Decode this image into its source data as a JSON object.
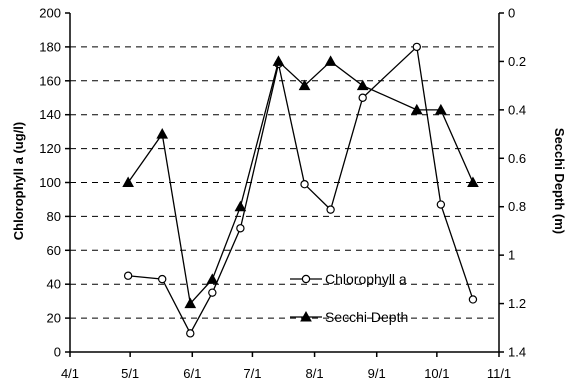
{
  "chart_data": {
    "type": "line",
    "x_tick_labels": [
      "4/1",
      "5/1",
      "6/1",
      "7/1",
      "8/1",
      "9/1",
      "10/1",
      "11/1"
    ],
    "xlim": [
      "4/1",
      "11/1"
    ],
    "ylabel": "Chlorophyll a (ug/l)",
    "ylim": [
      0,
      200
    ],
    "y_ticks": [
      0,
      20,
      40,
      60,
      80,
      100,
      120,
      140,
      160,
      180,
      200
    ],
    "y2label": "Secchi Depth (m)",
    "y2lim": [
      0,
      1.4
    ],
    "y2_inverted": true,
    "y2_ticks": [
      0,
      0.2,
      0.4,
      0.6,
      0.8,
      1,
      1.2,
      1.4
    ],
    "y2_tick_labels": [
      "0",
      "0.2",
      "0.4",
      "0.6",
      "0.8",
      "1",
      "1.2",
      "1.4"
    ],
    "grid": "horizontal dashed",
    "legend_position": "bottom-right",
    "series": [
      {
        "name": "Chlorophyll a",
        "axis": "left",
        "marker": "open-circle",
        "color": "#000000",
        "points": [
          {
            "x": "4/30",
            "y": 45
          },
          {
            "x": "5/17",
            "y": 43
          },
          {
            "x": "5/31",
            "y": 11
          },
          {
            "x": "6/11",
            "y": 35
          },
          {
            "x": "6/25",
            "y": 73
          },
          {
            "x": "7/14",
            "y": 170
          },
          {
            "x": "7/27",
            "y": 99
          },
          {
            "x": "8/9",
            "y": 84
          },
          {
            "x": "8/25",
            "y": 150
          },
          {
            "x": "9/21",
            "y": 180
          },
          {
            "x": "10/3",
            "y": 87
          },
          {
            "x": "10/19",
            "y": 31
          }
        ]
      },
      {
        "name": "Secchi Depth",
        "axis": "right",
        "marker": "filled-triangle",
        "color": "#000000",
        "points": [
          {
            "x": "4/30",
            "y": 0.7
          },
          {
            "x": "5/17",
            "y": 0.5
          },
          {
            "x": "5/31",
            "y": 1.2
          },
          {
            "x": "6/11",
            "y": 1.1
          },
          {
            "x": "6/25",
            "y": 0.8
          },
          {
            "x": "7/14",
            "y": 0.2
          },
          {
            "x": "7/27",
            "y": 0.3
          },
          {
            "x": "8/9",
            "y": 0.2
          },
          {
            "x": "8/25",
            "y": 0.3
          },
          {
            "x": "9/21",
            "y": 0.4
          },
          {
            "x": "10/3",
            "y": 0.4
          },
          {
            "x": "10/19",
            "y": 0.7
          }
        ]
      }
    ]
  }
}
